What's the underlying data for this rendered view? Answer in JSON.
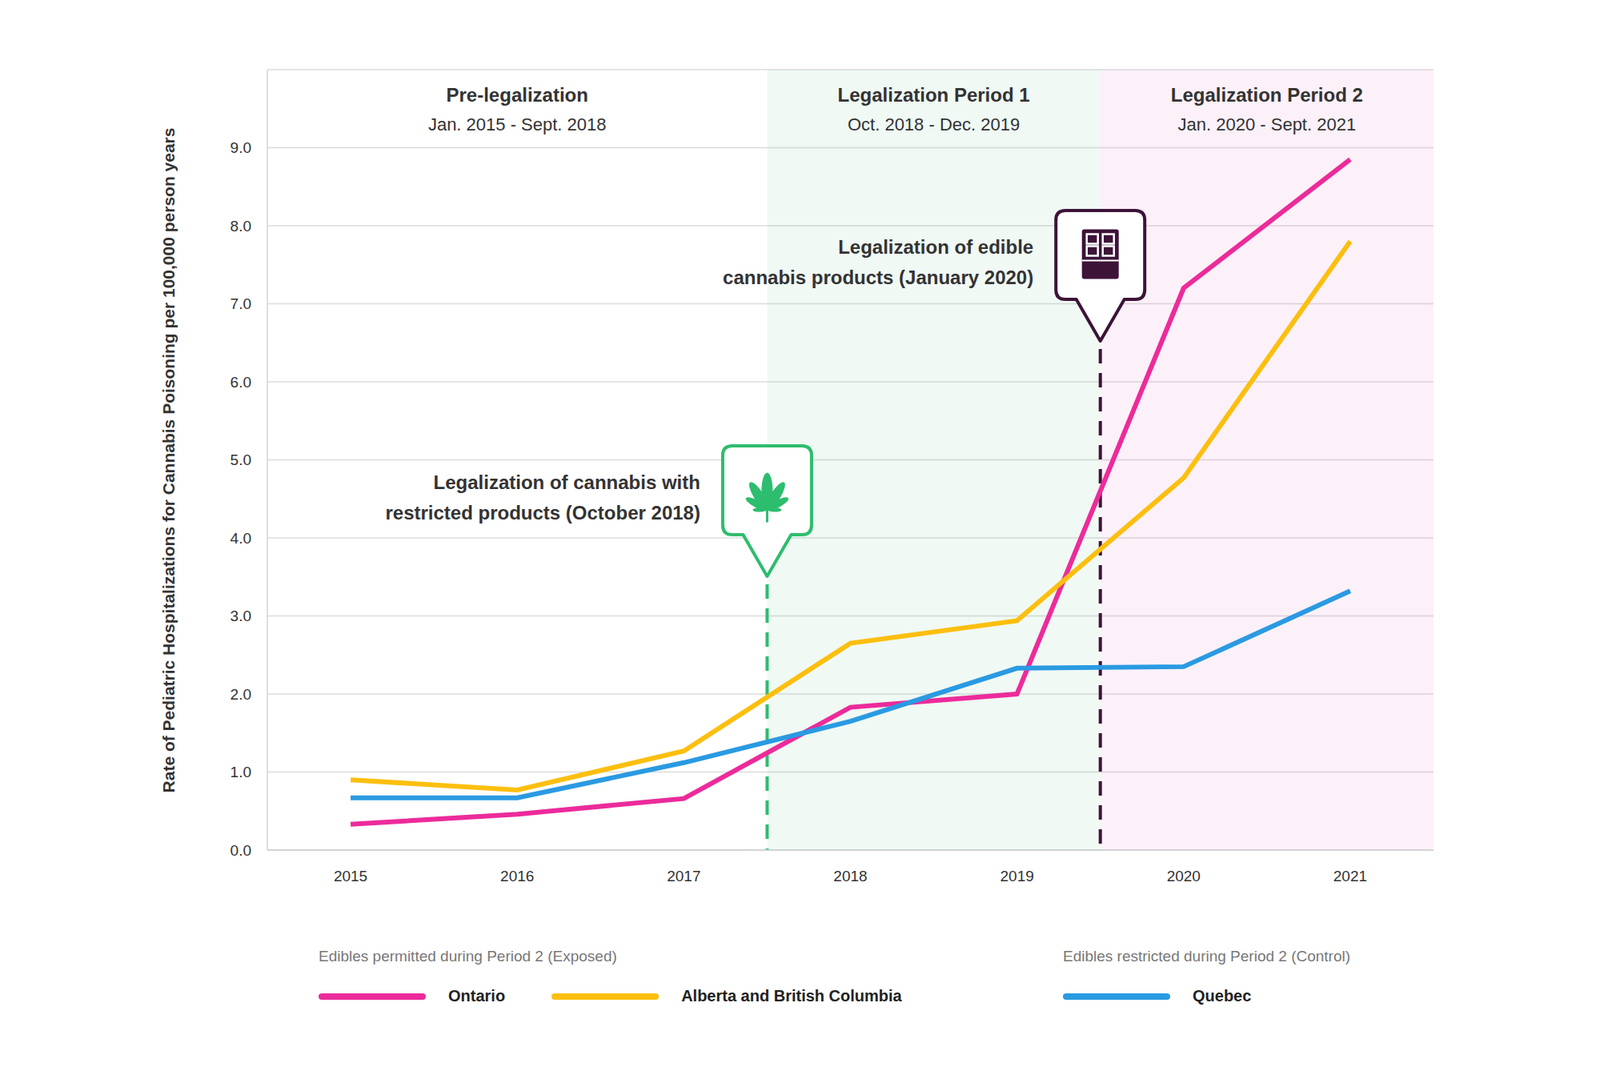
{
  "chart_data": {
    "type": "line",
    "y_label": "Rate of Pediatric Hospitalizations for Cannabis Poisoning per 100,000 person years",
    "x": [
      2015,
      2016,
      2017,
      2018,
      2019,
      2020,
      2021
    ],
    "xlim": [
      2014.5,
      2021.5
    ],
    "xticks": [
      2015,
      2016,
      2017,
      2018,
      2019,
      2020,
      2021
    ],
    "ylim": [
      0,
      10
    ],
    "yticks": [
      {
        "value": 0,
        "label": "0.0"
      },
      {
        "value": 1,
        "label": "1.0"
      },
      {
        "value": 2,
        "label": "2.0"
      },
      {
        "value": 3,
        "label": "3.0"
      },
      {
        "value": 4,
        "label": "4.0"
      },
      {
        "value": 5,
        "label": "5.0"
      },
      {
        "value": 6,
        "label": "6.0"
      },
      {
        "value": 7,
        "label": "7.0"
      },
      {
        "value": 8,
        "label": "8.0"
      },
      {
        "value": 9,
        "label": "9.0"
      }
    ],
    "grid": true,
    "legend": "bottom",
    "series": [
      {
        "name": "Ontario",
        "color": "#ec2b9b",
        "values": [
          0.33,
          0.46,
          0.66,
          1.83,
          2.0,
          7.2,
          8.85
        ]
      },
      {
        "name": "Alberta and British Columbia",
        "color": "#fcbf0f",
        "values": [
          0.9,
          0.77,
          1.27,
          2.65,
          2.94,
          4.77,
          7.8
        ]
      },
      {
        "name": "Quebec",
        "color": "#2a9ae2",
        "values": [
          0.67,
          0.67,
          1.12,
          1.65,
          2.33,
          2.35,
          3.32
        ]
      }
    ],
    "legend_groups": [
      {
        "label": "Edibles permitted during Period 2 (Exposed)",
        "series": [
          "Ontario",
          "Alberta and British Columbia"
        ]
      },
      {
        "label": "Edibles restricted during Period 2 (Control)",
        "series": [
          "Quebec"
        ]
      }
    ],
    "periods": [
      {
        "label": "Pre-legalization",
        "dates": "Jan. 2015 - Sept. 2018",
        "x_start": 2014.5,
        "x_end": 2017.5
      },
      {
        "label": "Legalization Period 1",
        "dates": "Oct. 2018 - Dec. 2019",
        "x_start": 2017.5,
        "x_end": 2019.5,
        "color": "#3bb273"
      },
      {
        "label": "Legalization Period 2",
        "dates": "Jan. 2020 - Sept. 2021",
        "x_start": 2019.5,
        "x_end": 2021.5,
        "color": "#d94fb0"
      }
    ],
    "annotations": [
      {
        "x": 2017.5,
        "label": [
          "Legalization of cannabis with",
          "restricted products (October 2018)"
        ],
        "color": "#2dbd6e",
        "marker": "leaf"
      },
      {
        "x": 2019.5,
        "label": [
          "Legalization of edible",
          "cannabis products (January 2020)"
        ],
        "color": "#3d1338",
        "marker": "chocolate"
      }
    ]
  }
}
